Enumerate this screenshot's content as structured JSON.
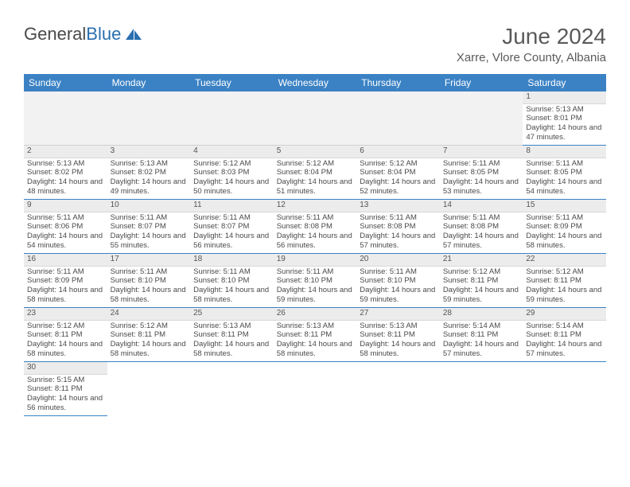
{
  "logo": {
    "text1": "General",
    "text2": "Blue"
  },
  "title": "June 2024",
  "location": "Xarre, Vlore County, Albania",
  "colors": {
    "header_bg": "#3b82c4",
    "header_text": "#ffffff",
    "border": "#3b82c4",
    "daynum_bg": "#ececec",
    "text": "#4a4a4a",
    "logo_gray": "#4a4a4a",
    "logo_blue": "#2a6fb0"
  },
  "weekdays": [
    "Sunday",
    "Monday",
    "Tuesday",
    "Wednesday",
    "Thursday",
    "Friday",
    "Saturday"
  ],
  "days": {
    "1": {
      "sunrise": "5:13 AM",
      "sunset": "8:01 PM",
      "daylight": "14 hours and 47 minutes."
    },
    "2": {
      "sunrise": "5:13 AM",
      "sunset": "8:02 PM",
      "daylight": "14 hours and 48 minutes."
    },
    "3": {
      "sunrise": "5:13 AM",
      "sunset": "8:02 PM",
      "daylight": "14 hours and 49 minutes."
    },
    "4": {
      "sunrise": "5:12 AM",
      "sunset": "8:03 PM",
      "daylight": "14 hours and 50 minutes."
    },
    "5": {
      "sunrise": "5:12 AM",
      "sunset": "8:04 PM",
      "daylight": "14 hours and 51 minutes."
    },
    "6": {
      "sunrise": "5:12 AM",
      "sunset": "8:04 PM",
      "daylight": "14 hours and 52 minutes."
    },
    "7": {
      "sunrise": "5:11 AM",
      "sunset": "8:05 PM",
      "daylight": "14 hours and 53 minutes."
    },
    "8": {
      "sunrise": "5:11 AM",
      "sunset": "8:05 PM",
      "daylight": "14 hours and 54 minutes."
    },
    "9": {
      "sunrise": "5:11 AM",
      "sunset": "8:06 PM",
      "daylight": "14 hours and 54 minutes."
    },
    "10": {
      "sunrise": "5:11 AM",
      "sunset": "8:07 PM",
      "daylight": "14 hours and 55 minutes."
    },
    "11": {
      "sunrise": "5:11 AM",
      "sunset": "8:07 PM",
      "daylight": "14 hours and 56 minutes."
    },
    "12": {
      "sunrise": "5:11 AM",
      "sunset": "8:08 PM",
      "daylight": "14 hours and 56 minutes."
    },
    "13": {
      "sunrise": "5:11 AM",
      "sunset": "8:08 PM",
      "daylight": "14 hours and 57 minutes."
    },
    "14": {
      "sunrise": "5:11 AM",
      "sunset": "8:08 PM",
      "daylight": "14 hours and 57 minutes."
    },
    "15": {
      "sunrise": "5:11 AM",
      "sunset": "8:09 PM",
      "daylight": "14 hours and 58 minutes."
    },
    "16": {
      "sunrise": "5:11 AM",
      "sunset": "8:09 PM",
      "daylight": "14 hours and 58 minutes."
    },
    "17": {
      "sunrise": "5:11 AM",
      "sunset": "8:10 PM",
      "daylight": "14 hours and 58 minutes."
    },
    "18": {
      "sunrise": "5:11 AM",
      "sunset": "8:10 PM",
      "daylight": "14 hours and 58 minutes."
    },
    "19": {
      "sunrise": "5:11 AM",
      "sunset": "8:10 PM",
      "daylight": "14 hours and 59 minutes."
    },
    "20": {
      "sunrise": "5:11 AM",
      "sunset": "8:10 PM",
      "daylight": "14 hours and 59 minutes."
    },
    "21": {
      "sunrise": "5:12 AM",
      "sunset": "8:11 PM",
      "daylight": "14 hours and 59 minutes."
    },
    "22": {
      "sunrise": "5:12 AM",
      "sunset": "8:11 PM",
      "daylight": "14 hours and 59 minutes."
    },
    "23": {
      "sunrise": "5:12 AM",
      "sunset": "8:11 PM",
      "daylight": "14 hours and 58 minutes."
    },
    "24": {
      "sunrise": "5:12 AM",
      "sunset": "8:11 PM",
      "daylight": "14 hours and 58 minutes."
    },
    "25": {
      "sunrise": "5:13 AM",
      "sunset": "8:11 PM",
      "daylight": "14 hours and 58 minutes."
    },
    "26": {
      "sunrise": "5:13 AM",
      "sunset": "8:11 PM",
      "daylight": "14 hours and 58 minutes."
    },
    "27": {
      "sunrise": "5:13 AM",
      "sunset": "8:11 PM",
      "daylight": "14 hours and 58 minutes."
    },
    "28": {
      "sunrise": "5:14 AM",
      "sunset": "8:11 PM",
      "daylight": "14 hours and 57 minutes."
    },
    "29": {
      "sunrise": "5:14 AM",
      "sunset": "8:11 PM",
      "daylight": "14 hours and 57 minutes."
    },
    "30": {
      "sunrise": "5:15 AM",
      "sunset": "8:11 PM",
      "daylight": "14 hours and 56 minutes."
    }
  },
  "labels": {
    "sunrise": "Sunrise:",
    "sunset": "Sunset:",
    "daylight": "Daylight:"
  },
  "layout": {
    "first_day_column": 6,
    "num_days": 30,
    "table_font_size": 9.5,
    "header_font_size": 12,
    "title_font_size": 28,
    "location_font_size": 15
  }
}
